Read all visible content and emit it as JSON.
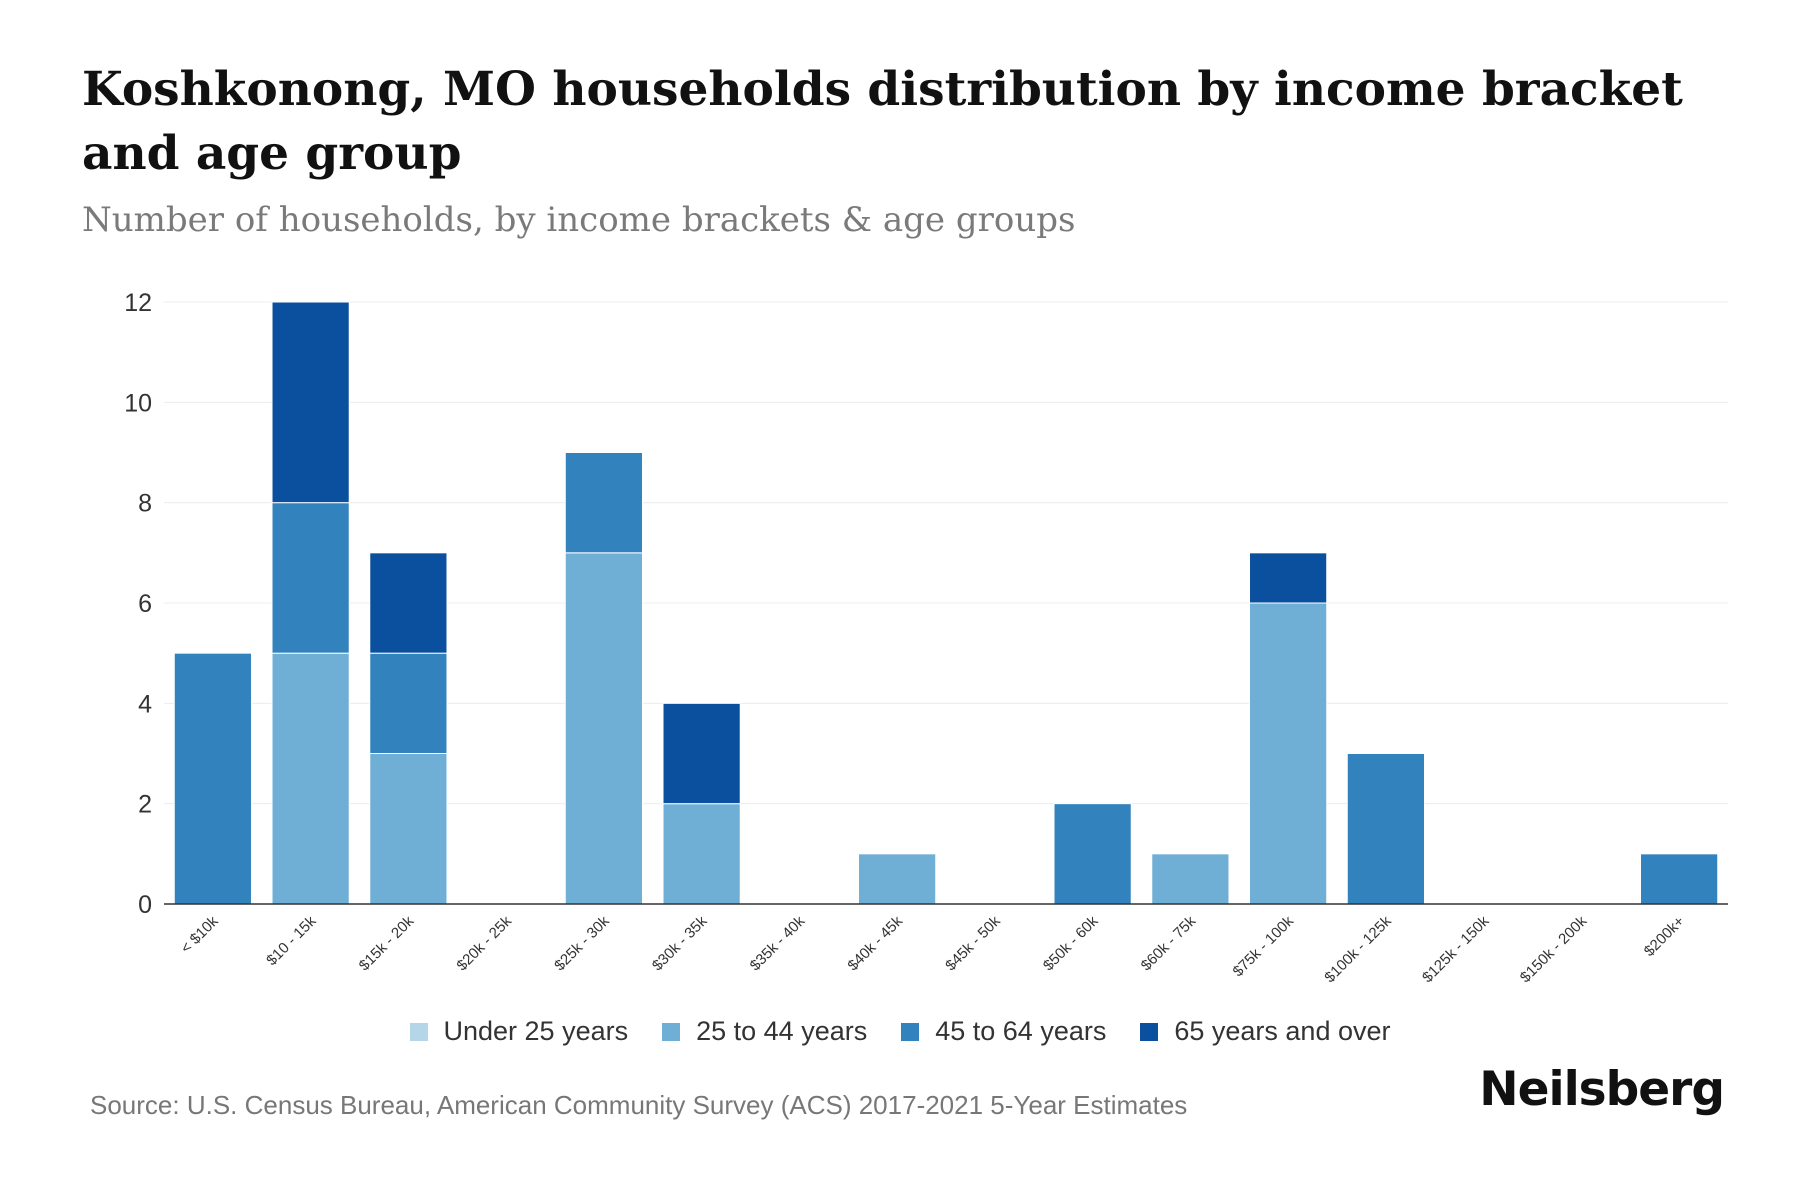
{
  "title": "Koshkonong, MO households distribution by income bracket and age group",
  "subtitle": "Number of households, by income brackets & age groups",
  "source": "Source: U.S. Census Bureau, American Community Survey (ACS) 2017-2021 5-Year Estimates",
  "brand": "Neilsberg",
  "colors": {
    "under_25": "#b4d6e8",
    "age_25_44": "#6fafd6",
    "age_45_64": "#3282bd",
    "age_65_plus": "#0b509e"
  },
  "chart_data": {
    "type": "bar",
    "stacked": true,
    "title": "Koshkonong, MO households distribution by income bracket and age group",
    "xlabel": "",
    "ylabel": "",
    "ylim": [
      0,
      12
    ],
    "yticks": [
      0,
      2,
      4,
      6,
      8,
      10,
      12
    ],
    "grid": true,
    "legend_position": "bottom",
    "categories": [
      "< $10k",
      "$10 - 15k",
      "$15k - 20k",
      "$20k - 25k",
      "$25k - 30k",
      "$30k - 35k",
      "$35k - 40k",
      "$40k - 45k",
      "$45k - 50k",
      "$50k - 60k",
      "$60k - 75k",
      "$75k - 100k",
      "$100k - 125k",
      "$125k - 150k",
      "$150k - 200k",
      "$200k+"
    ],
    "series": [
      {
        "name": "Under 25 years",
        "color": "#b4d6e8",
        "values": [
          0,
          0,
          0,
          0,
          0,
          0,
          0,
          0,
          0,
          0,
          0,
          0,
          0,
          0,
          0,
          0
        ]
      },
      {
        "name": "25 to 44 years",
        "color": "#6fafd6",
        "values": [
          0,
          5,
          3,
          0,
          7,
          2,
          0,
          1,
          0,
          0,
          1,
          6,
          0,
          0,
          0,
          0
        ]
      },
      {
        "name": "45 to 64 years",
        "color": "#3282bd",
        "values": [
          5,
          3,
          2,
          0,
          2,
          0,
          0,
          0,
          0,
          2,
          0,
          0,
          3,
          0,
          0,
          1
        ]
      },
      {
        "name": "65 years and over",
        "color": "#0b509e",
        "values": [
          0,
          4,
          2,
          0,
          0,
          2,
          0,
          0,
          0,
          0,
          0,
          1,
          0,
          0,
          0,
          0
        ]
      }
    ]
  }
}
